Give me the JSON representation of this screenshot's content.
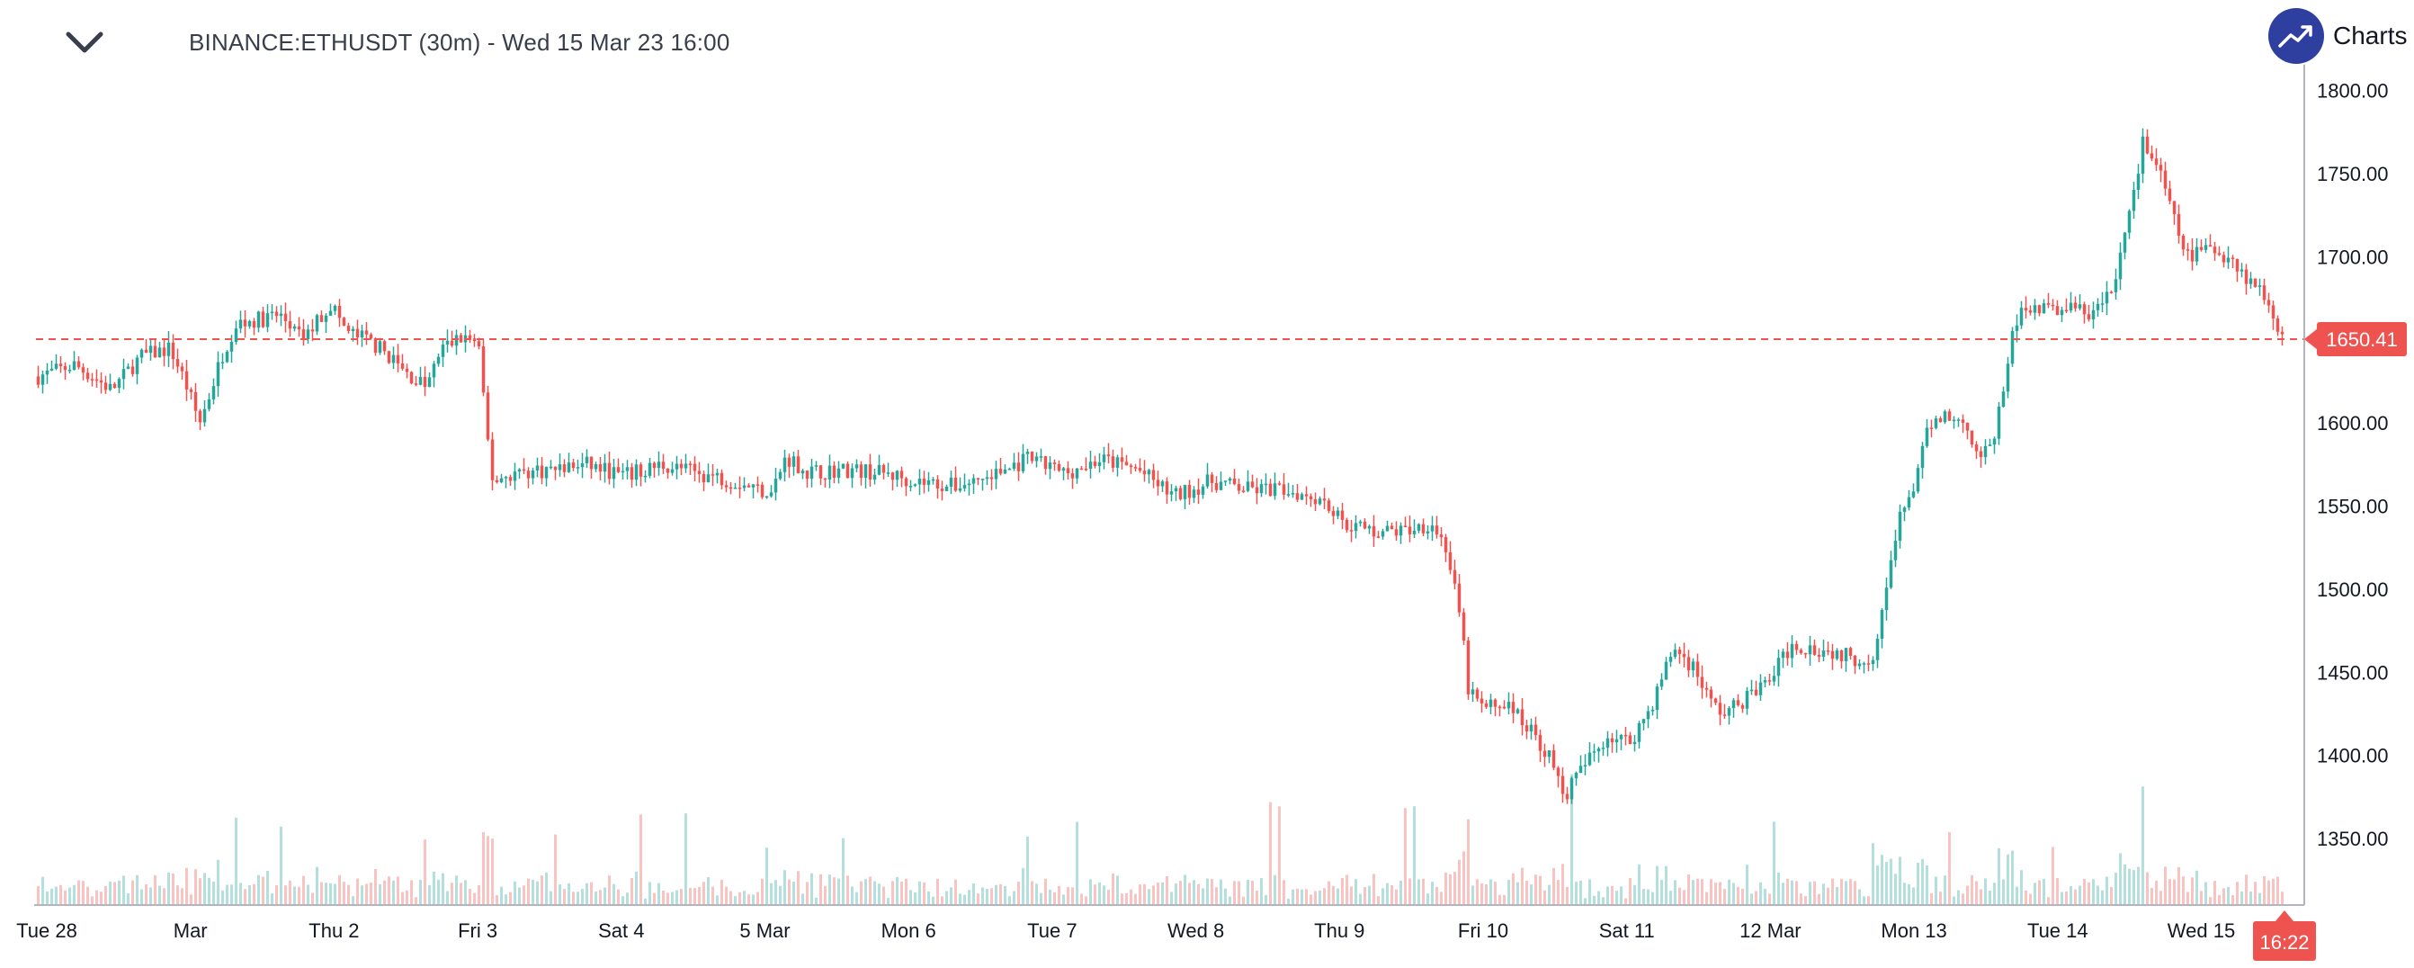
{
  "header": {
    "title": "BINANCE:ETHUSDT (30m) - Wed 15 Mar 23 16:00",
    "collapse_icon": "chevron-down-icon"
  },
  "brand": {
    "label": "Charts p",
    "icon": "trend-up-icon",
    "color": "#2e3fa0"
  },
  "colors": {
    "up": "#26a69a",
    "down": "#ef5350",
    "price_line": "#ef5350",
    "axis": "#b2b5be"
  },
  "chart_data": {
    "type": "candlestick",
    "symbol": "BINANCE:ETHUSDT",
    "interval": "30m",
    "x_labels": [
      "Tue 28",
      "Mar",
      "Thu 2",
      "Fri 3",
      "Sat 4",
      "5 Mar",
      "Mon 6",
      "Tue 7",
      "Wed 8",
      "Thu 9",
      "Fri 10",
      "Sat 11",
      "12 Mar",
      "Mon 13",
      "Tue 14",
      "Wed 15"
    ],
    "y_ticks": [
      1350,
      1400,
      1450,
      1500,
      1550,
      1600,
      1650,
      1700,
      1750,
      1800
    ],
    "y_range": [
      1310,
      1822
    ],
    "last_price": 1650.41,
    "last_price_label": "1650.41",
    "time_label": "16:22",
    "price_path": [
      [
        0,
        1628
      ],
      [
        5,
        1635
      ],
      [
        10,
        1620
      ],
      [
        14,
        1640
      ],
      [
        18,
        1645
      ],
      [
        20,
        1625
      ],
      [
        22,
        1600
      ],
      [
        23,
        1612
      ],
      [
        25,
        1640
      ],
      [
        27,
        1660
      ],
      [
        30,
        1662
      ],
      [
        33,
        1665
      ],
      [
        36,
        1650
      ],
      [
        40,
        1672
      ],
      [
        42,
        1655
      ],
      [
        45,
        1650
      ],
      [
        48,
        1640
      ],
      [
        50,
        1630
      ],
      [
        53,
        1622
      ],
      [
        55,
        1645
      ],
      [
        58,
        1652
      ],
      [
        60,
        1648
      ],
      [
        61,
        1600
      ],
      [
        62,
        1565
      ],
      [
        65,
        1570
      ],
      [
        70,
        1572
      ],
      [
        75,
        1575
      ],
      [
        80,
        1568
      ],
      [
        85,
        1575
      ],
      [
        90,
        1570
      ],
      [
        95,
        1565
      ],
      [
        100,
        1558
      ],
      [
        102,
        1580
      ],
      [
        105,
        1570
      ],
      [
        110,
        1572
      ],
      [
        115,
        1570
      ],
      [
        120,
        1565
      ],
      [
        125,
        1562
      ],
      [
        130,
        1568
      ],
      [
        135,
        1578
      ],
      [
        140,
        1570
      ],
      [
        145,
        1578
      ],
      [
        150,
        1572
      ],
      [
        153,
        1562
      ],
      [
        155,
        1556
      ],
      [
        160,
        1565
      ],
      [
        165,
        1560
      ],
      [
        170,
        1560
      ],
      [
        175,
        1555
      ],
      [
        178,
        1540
      ],
      [
        182,
        1535
      ],
      [
        186,
        1535
      ],
      [
        190,
        1540
      ],
      [
        192,
        1525
      ],
      [
        194,
        1480
      ],
      [
        195,
        1440
      ],
      [
        197,
        1428
      ],
      [
        200,
        1432
      ],
      [
        203,
        1418
      ],
      [
        206,
        1400
      ],
      [
        208,
        1375
      ],
      [
        211,
        1395
      ],
      [
        214,
        1412
      ],
      [
        217,
        1408
      ],
      [
        220,
        1430
      ],
      [
        223,
        1465
      ],
      [
        226,
        1452
      ],
      [
        228,
        1432
      ],
      [
        230,
        1425
      ],
      [
        233,
        1435
      ],
      [
        236,
        1445
      ],
      [
        239,
        1466
      ],
      [
        242,
        1465
      ],
      [
        245,
        1462
      ],
      [
        248,
        1458
      ],
      [
        250,
        1458
      ],
      [
        252,
        1500
      ],
      [
        254,
        1545
      ],
      [
        256,
        1565
      ],
      [
        258,
        1600
      ],
      [
        260,
        1605
      ],
      [
        263,
        1598
      ],
      [
        265,
        1578
      ],
      [
        267,
        1595
      ],
      [
        269,
        1650
      ],
      [
        271,
        1672
      ],
      [
        274,
        1668
      ],
      [
        277,
        1670
      ],
      [
        280,
        1665
      ],
      [
        283,
        1680
      ],
      [
        285,
        1725
      ],
      [
        287,
        1768
      ],
      [
        289,
        1755
      ],
      [
        291,
        1725
      ],
      [
        293,
        1700
      ],
      [
        296,
        1705
      ],
      [
        299,
        1700
      ],
      [
        301,
        1688
      ],
      [
        303,
        1680
      ],
      [
        305,
        1665
      ],
      [
        306,
        1650
      ]
    ]
  }
}
